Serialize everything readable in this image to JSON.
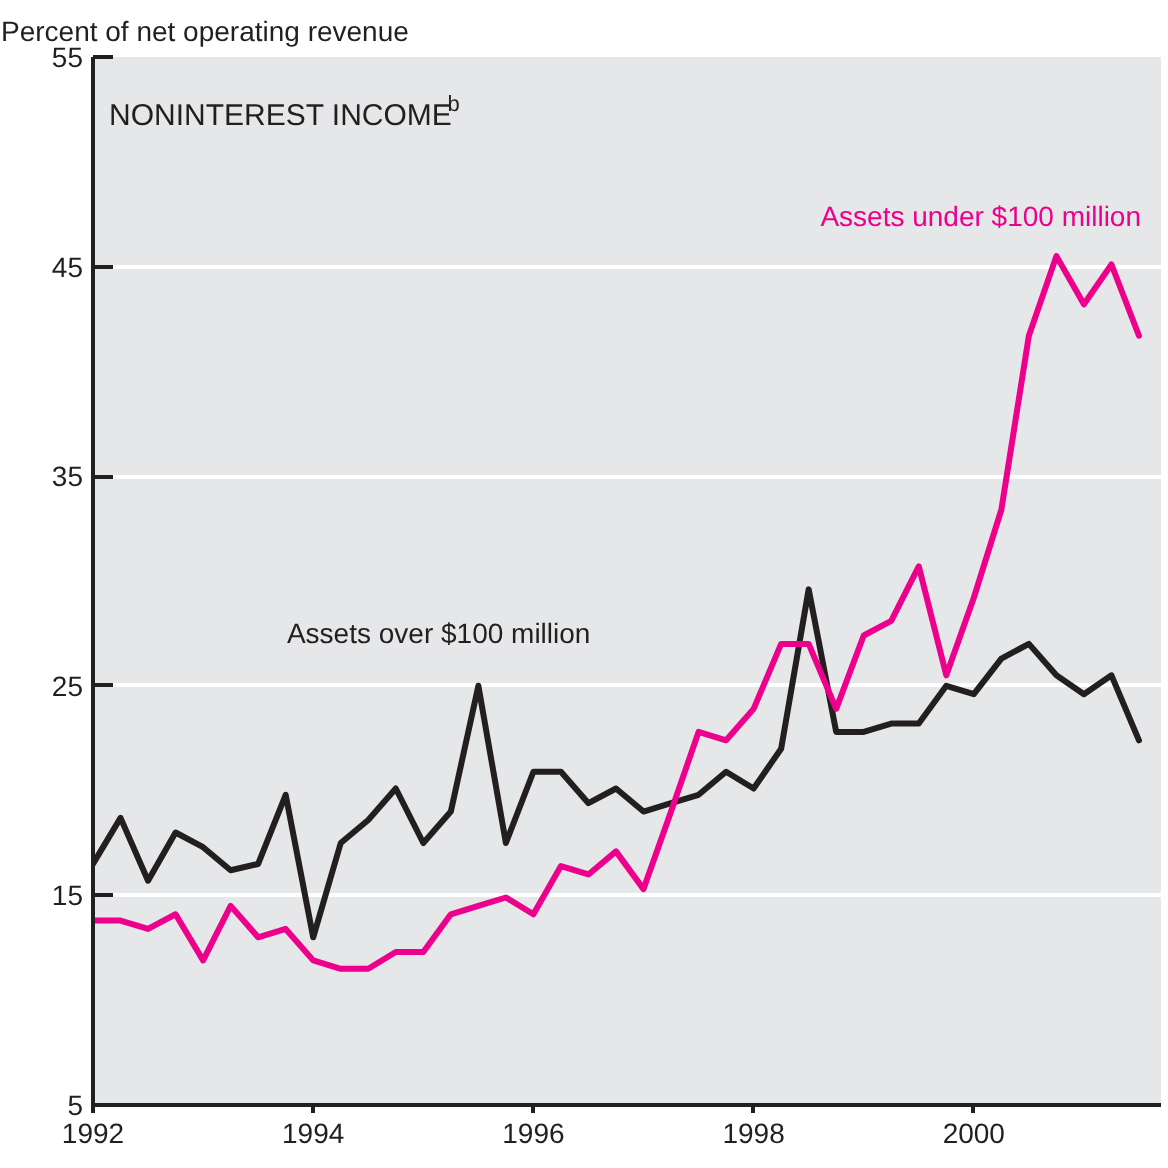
{
  "chart_data": {
    "type": "line",
    "title": "NONINTEREST INCOME$^{b}$",
    "ylabel": "Percent of net operating revenue",
    "x": [
      1992,
      1992.25,
      1992.5,
      1992.75,
      1993,
      1993.25,
      1993.5,
      1993.75,
      1994,
      1994.25,
      1994.5,
      1994.75,
      1995,
      1995.25,
      1995.5,
      1995.75,
      1996,
      1996.25,
      1996.5,
      1996.75,
      1997,
      1997.25,
      1997.5,
      1997.75,
      1998,
      1998.25,
      1998.5,
      1998.75,
      1999,
      1999.25,
      1999.5,
      1999.75,
      2000,
      2000.25,
      2000.5,
      2000.75,
      2001,
      2001.25,
      2001.5
    ],
    "series": [
      {
        "name": "Assets over $100 million",
        "color": "#231f20",
        "values": [
          16.5,
          18.7,
          15.7,
          18.0,
          17.3,
          16.2,
          16.5,
          19.8,
          13.0,
          17.5,
          18.6,
          20.1,
          17.5,
          19.0,
          25.0,
          17.5,
          20.9,
          20.9,
          19.4,
          20.1,
          19.0,
          19.4,
          19.8,
          20.9,
          20.1,
          22.0,
          29.6,
          22.8,
          22.8,
          23.2,
          23.2,
          25.0,
          24.6,
          26.3,
          27.0,
          25.5,
          24.6,
          25.5,
          22.4
        ]
      },
      {
        "name": "Assets under $100 million",
        "color": "#ec008c",
        "values": [
          13.8,
          13.8,
          13.4,
          14.1,
          11.9,
          14.5,
          13.0,
          13.4,
          11.9,
          11.5,
          11.5,
          12.3,
          12.3,
          14.1,
          14.5,
          14.9,
          14.1,
          16.4,
          16.0,
          17.1,
          15.3,
          19.0,
          22.8,
          22.4,
          23.9,
          27.0,
          27.0,
          23.9,
          27.4,
          28.1,
          30.7,
          25.5,
          29.2,
          33.4,
          41.7,
          45.5,
          43.2,
          45.1,
          41.7
        ]
      }
    ],
    "xlim": [
      1992,
      2001.7
    ],
    "xticks": [
      1992,
      1994,
      1996,
      1998,
      2000
    ],
    "ylim": [
      5,
      55
    ],
    "yticks": [
      5,
      15,
      25,
      35,
      45,
      55
    ],
    "grid": "y",
    "legend": false,
    "marker": "none",
    "line_style": "solid"
  }
}
